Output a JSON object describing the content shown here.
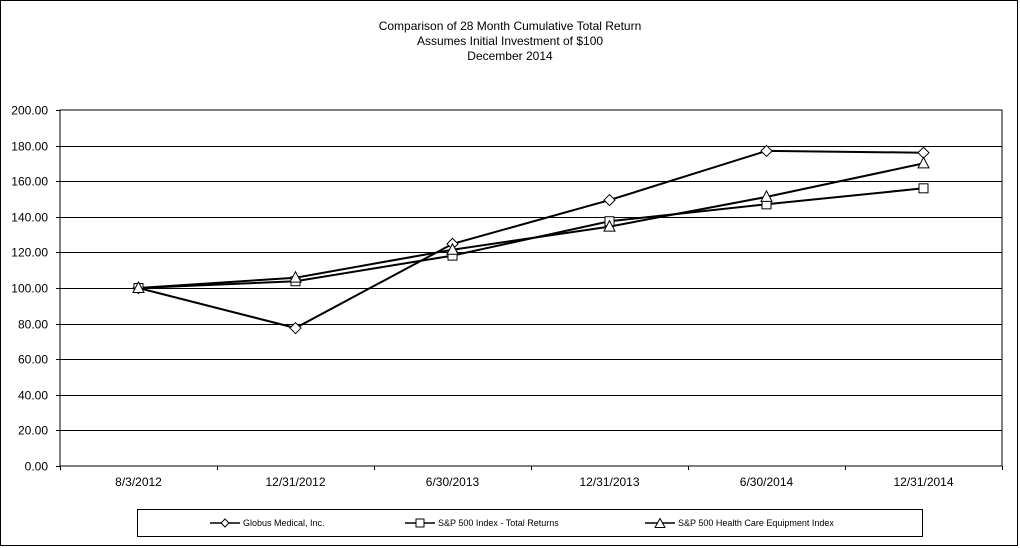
{
  "chart_data": {
    "type": "line",
    "title_lines": [
      "Comparison  of 28 Month  Cumulative  Total  Return",
      "Assumes Initial Investment  of $100",
      "December  2014"
    ],
    "categories": [
      "8/3/2012",
      "12/31/2012",
      "6/30/2013",
      "12/31/2013",
      "6/30/2014",
      "12/31/2014"
    ],
    "series": [
      {
        "name": "Globus Medical, Inc.",
        "marker": "diamond",
        "values": [
          100.0,
          77.5,
          124.8,
          149.4,
          177.0,
          176.0
        ]
      },
      {
        "name": "S&P 500 Index - Total Returns",
        "marker": "square",
        "values": [
          100.0,
          103.8,
          118.2,
          137.5,
          147.0,
          156.0
        ]
      },
      {
        "name": "S&P 500 Health Care Equipment Index",
        "marker": "triangle",
        "values": [
          100.0,
          105.8,
          121.5,
          134.5,
          151.2,
          170.0
        ]
      }
    ],
    "ylim": [
      0,
      200
    ],
    "yticks": [
      "0.00",
      "20.00",
      "40.00",
      "60.00",
      "80.00",
      "100.00",
      "120.00",
      "140.00",
      "160.00",
      "180.00",
      "200.00"
    ],
    "grid": true,
    "legend_position": "bottom",
    "line_color": "#000000"
  }
}
